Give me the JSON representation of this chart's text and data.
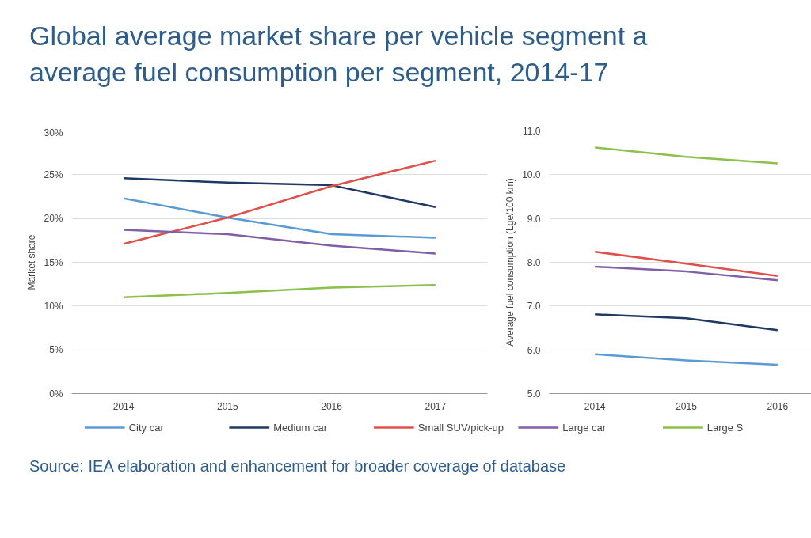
{
  "chart_data": [
    {
      "type": "line",
      "title": "Global average market share per vehicle segment a\naverage fuel consumption per segment, 2014-17",
      "ylabel": "Market share",
      "categories": [
        "2014",
        "2015",
        "2016",
        "2017"
      ],
      "ylim": [
        0,
        30
      ],
      "yticks": [
        {
          "value": 0,
          "label": "0%"
        },
        {
          "value": 5,
          "label": "5%"
        },
        {
          "value": 10,
          "label": "10%"
        },
        {
          "value": 15,
          "label": "15%"
        },
        {
          "value": 20,
          "label": "20%"
        },
        {
          "value": 25,
          "label": "25%"
        },
        {
          "value": 30,
          "label": "30%"
        }
      ],
      "grid": "y",
      "legend": "bottom",
      "marker": "none",
      "line_style": "solid",
      "series": [
        {
          "name": "City car",
          "color": "#5b9bd5",
          "values": [
            22.3,
            20.1,
            18.2,
            17.8
          ]
        },
        {
          "name": "Medium car",
          "color": "#1f3864",
          "values": [
            24.6,
            24.1,
            23.8,
            21.3
          ]
        },
        {
          "name": "Small SUV/pick-up",
          "color": "#e0504a",
          "values": [
            17.1,
            20.1,
            23.7,
            26.6
          ]
        },
        {
          "name": "Large car",
          "color": "#7f5fa8",
          "values": [
            18.7,
            18.2,
            16.9,
            16.0
          ]
        },
        {
          "name": "Large S",
          "color": "#8cc04a",
          "values": [
            11.0,
            11.5,
            12.1,
            12.4
          ]
        }
      ],
      "annotations": [
        "Source: IEA elaboration and enhancement for broader coverage of database"
      ]
    },
    {
      "type": "line",
      "ylabel": "Average fuel consumption (Lge/100 km)",
      "categories": [
        "2014",
        "2015",
        "2016"
      ],
      "ylim": [
        5,
        11
      ],
      "yticks": [
        {
          "value": 5,
          "label": "5.0"
        },
        {
          "value": 6,
          "label": "6.0"
        },
        {
          "value": 7,
          "label": "7.0"
        },
        {
          "value": 8,
          "label": "8.0"
        },
        {
          "value": 9,
          "label": "9.0"
        },
        {
          "value": 10,
          "label": "10.0"
        },
        {
          "value": 11,
          "label": "11.0"
        }
      ],
      "grid": "y",
      "marker": "none",
      "line_style": "solid",
      "series": [
        {
          "color": "#5b9bd5",
          "values": [
            5.9,
            5.76,
            5.66
          ]
        },
        {
          "color": "#1f3864",
          "values": [
            6.81,
            6.72,
            6.45
          ]
        },
        {
          "color": "#e0504a",
          "values": [
            8.24,
            7.97,
            7.69
          ]
        },
        {
          "color": "#7f5fa8",
          "values": [
            7.9,
            7.79,
            7.59
          ]
        },
        {
          "color": "#8cc04a",
          "values": [
            10.62,
            10.41,
            10.26
          ]
        }
      ]
    }
  ]
}
